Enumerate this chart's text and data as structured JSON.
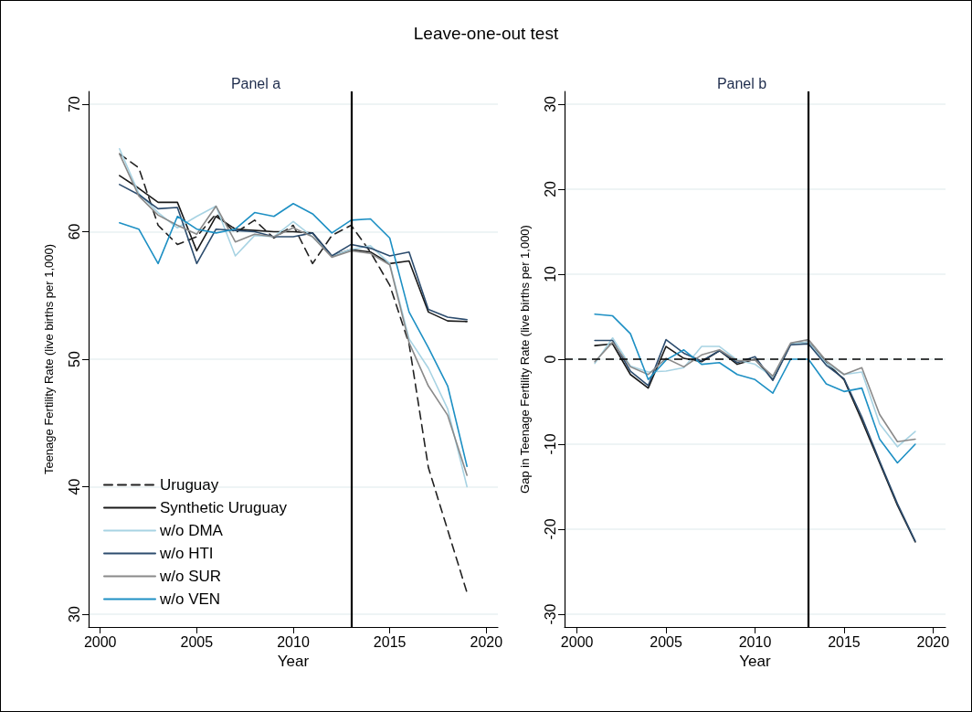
{
  "chart_data": [
    {
      "type": "line",
      "title": "Leave-one-out test",
      "subtitle": "Panel a",
      "xlabel": "Year",
      "ylabel": "Teenage Fertility Rate (live births per 1,000)",
      "x": [
        2001,
        2002,
        2003,
        2004,
        2005,
        2006,
        2007,
        2008,
        2009,
        2010,
        2011,
        2012,
        2013,
        2014,
        2015,
        2016,
        2017,
        2018,
        2019
      ],
      "xlim": [
        1999.4,
        2020.6
      ],
      "xticks": [
        2000,
        2005,
        2010,
        2015,
        2020
      ],
      "ylim": [
        29,
        71
      ],
      "yticks": [
        30,
        40,
        50,
        60,
        70
      ],
      "grid": "y",
      "legend": "bottom left",
      "ref_lines": [
        {
          "axis": "x",
          "value": 2013,
          "color": "#000000",
          "line_style": "solid"
        }
      ],
      "series": [
        {
          "name": "Uruguay",
          "color": "#222222",
          "line_style": "dashed",
          "values": [
            66.1,
            65.0,
            60.5,
            59.0,
            59.6,
            61.4,
            59.9,
            60.9,
            59.5,
            60.5,
            57.5,
            59.7,
            60.5,
            58.4,
            55.8,
            51.2,
            41.5,
            36.6,
            31.7
          ]
        },
        {
          "name": "Synthetic Uruguay",
          "color": "#1a1a1a",
          "values": [
            64.4,
            63.4,
            62.3,
            62.3,
            58.5,
            61.2,
            60.2,
            60.1,
            60.0,
            60.0,
            59.9,
            58.1,
            58.6,
            58.4,
            57.5,
            57.7,
            53.7,
            53.0,
            52.95
          ]
        },
        {
          "name": "w/o DMA",
          "color": "#a8d3e3",
          "values": [
            66.5,
            63.0,
            61.5,
            60.3,
            61.2,
            62.0,
            58.1,
            59.7,
            59.6,
            60.8,
            59.6,
            58.1,
            58.6,
            58.9,
            57.5,
            51.6,
            49.3,
            46.1,
            40.0
          ]
        },
        {
          "name": "w/o HTI",
          "color": "#2c4c6e",
          "values": [
            63.7,
            62.9,
            61.8,
            61.9,
            57.5,
            60.2,
            60.1,
            60.0,
            59.6,
            59.6,
            59.9,
            58.1,
            59.0,
            58.7,
            58.1,
            58.4,
            53.9,
            53.3,
            53.1
          ]
        },
        {
          "name": "w/o SUR",
          "color": "#8a8a8a",
          "values": [
            66.1,
            62.8,
            61.3,
            60.5,
            59.8,
            62.0,
            59.2,
            59.8,
            59.6,
            60.3,
            59.6,
            58.0,
            58.5,
            58.3,
            57.4,
            51.3,
            47.9,
            45.6,
            40.9
          ]
        },
        {
          "name": "w/o VEN",
          "color": "#1e90c4",
          "values": [
            60.7,
            60.2,
            57.5,
            61.2,
            60.2,
            59.9,
            60.2,
            61.5,
            61.2,
            62.2,
            61.4,
            59.9,
            60.9,
            61.0,
            59.5,
            53.7,
            50.9,
            47.9,
            41.6
          ]
        }
      ]
    },
    {
      "type": "line",
      "title": "Panel b",
      "xlabel": "Year",
      "ylabel": "Gap in Teenage Fertility Rate (live births per 1,000)",
      "x": [
        2001,
        2002,
        2003,
        2004,
        2005,
        2006,
        2007,
        2008,
        2009,
        2010,
        2011,
        2012,
        2013,
        2014,
        2015,
        2016,
        2017,
        2018,
        2019
      ],
      "xlim": [
        1999.3,
        2020.7
      ],
      "xticks": [
        2000,
        2005,
        2010,
        2015,
        2020
      ],
      "ylim": [
        -31.5,
        31.5
      ],
      "yticks": [
        -30,
        -20,
        -10,
        0,
        10,
        20,
        30
      ],
      "grid": "y",
      "ref_lines": [
        {
          "axis": "x",
          "value": 2013,
          "color": "#000000",
          "line_style": "solid"
        },
        {
          "axis": "y",
          "value": 0,
          "color": "#000000",
          "line_style": "dashed"
        }
      ],
      "series": [
        {
          "color": "#1a1a1a",
          "values": [
            1.6,
            1.8,
            -1.8,
            -3.4,
            1.5,
            0.1,
            -0.3,
            1.0,
            -0.6,
            0.0,
            -2.4,
            1.8,
            2.0,
            -0.4,
            -2.4,
            -7.2,
            -12.2,
            -17.2,
            -21.5
          ]
        },
        {
          "color": "#a8d3e3",
          "values": [
            -0.5,
            2.5,
            -0.8,
            -1.5,
            -1.4,
            -1.0,
            1.5,
            1.5,
            -0.1,
            -0.6,
            -2.1,
            1.8,
            2.0,
            -0.5,
            -1.8,
            -1.5,
            -7.6,
            -10.3,
            -8.5
          ]
        },
        {
          "color": "#2c4c6e",
          "values": [
            2.2,
            2.2,
            -1.4,
            -3.1,
            2.3,
            0.7,
            -0.2,
            1.0,
            -0.4,
            0.3,
            -2.5,
            1.7,
            1.8,
            -0.7,
            -2.3,
            -6.8,
            -12.0,
            -17.0,
            -21.4
          ]
        },
        {
          "color": "#8a8a8a",
          "values": [
            -0.3,
            2.0,
            -0.9,
            -1.8,
            0.1,
            -0.9,
            0.5,
            1.1,
            -0.2,
            -0.1,
            -2.0,
            1.9,
            2.3,
            -0.2,
            -1.8,
            -1.0,
            -6.5,
            -9.7,
            -9.4
          ]
        },
        {
          "color": "#1e90c4",
          "values": [
            5.3,
            5.1,
            3.0,
            -2.4,
            -0.1,
            1.1,
            -0.6,
            -0.4,
            -1.8,
            -2.4,
            -4.0,
            0.0,
            0.0,
            -2.9,
            -3.8,
            -3.4,
            -9.4,
            -12.2,
            -10.0
          ]
        }
      ]
    }
  ]
}
